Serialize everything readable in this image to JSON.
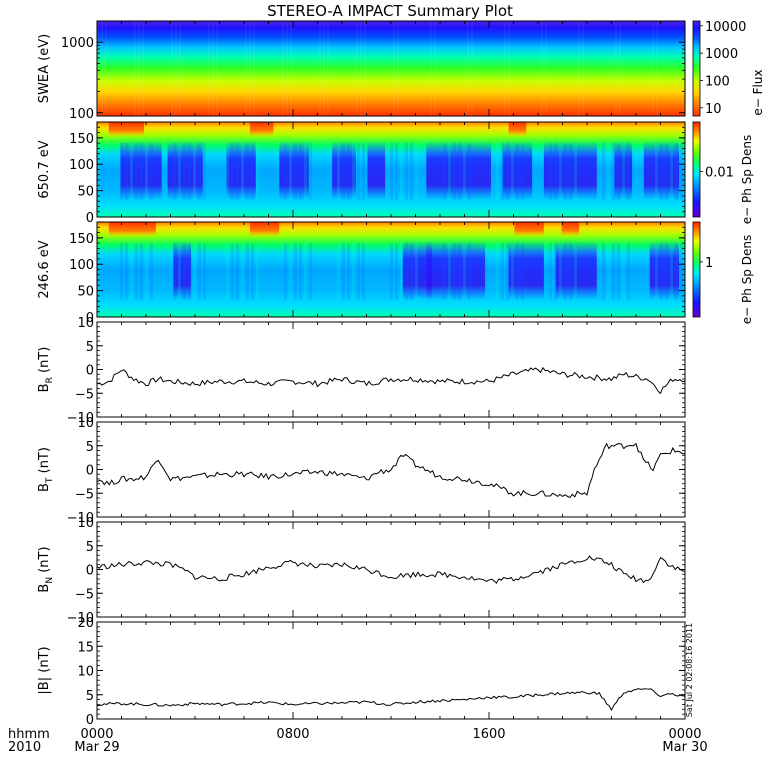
{
  "title": "STEREO-A IMPACT Summary Plot",
  "stamp": "Sat Jul  2 02:08:16 2011",
  "time_axis": {
    "row1_label": "hhmm",
    "row2_label": "2010",
    "ticks": [
      {
        "time": "0000",
        "date": "Mar 29",
        "frac": 0
      },
      {
        "time": "0800",
        "date": "",
        "frac": 0.3333
      },
      {
        "time": "1600",
        "date": "",
        "frac": 0.6667
      },
      {
        "time": "0000",
        "date": "Mar 30",
        "frac": 1
      }
    ]
  },
  "colors": {
    "line": "#000000",
    "axis": "#000000"
  },
  "chart_data": [
    {
      "type": "heatmap",
      "ylabel": "SWEA (eV)",
      "yscale": "log",
      "ylim": [
        90,
        2000
      ],
      "yticks": [
        {
          "label": "100",
          "value": 100
        },
        {
          "label": "1000",
          "value": 1000
        }
      ],
      "colorbar": {
        "label": "e− Flux",
        "scale": "log",
        "range": [
          5,
          15000
        ],
        "ticks": [
          {
            "label": "10000",
            "value": 10000
          },
          {
            "label": "1000",
            "value": 1000
          },
          {
            "label": "100",
            "value": 100
          },
          {
            "label": "10",
            "value": 10
          }
        ]
      },
      "description": "energy-time spectrogram, flux decreasing with energy (red at low energy, purple at high energy)"
    },
    {
      "type": "heatmap",
      "ylabel": "650.7 eV",
      "ylim": [
        0,
        180
      ],
      "yticks": [
        {
          "label": "0",
          "value": 0
        },
        {
          "label": "50",
          "value": 50
        },
        {
          "label": "100",
          "value": 100
        },
        {
          "label": "150",
          "value": 150
        }
      ],
      "colorbar": {
        "label": "e− Ph Sp Dens",
        "scale": "log",
        "ticks": [
          {
            "label": "0.01",
            "value": 0.01
          }
        ]
      },
      "description": "pitch angle distribution"
    },
    {
      "type": "heatmap",
      "ylabel": "246.6 eV",
      "ylim": [
        0,
        180
      ],
      "yticks": [
        {
          "label": "0",
          "value": 0
        },
        {
          "label": "50",
          "value": 50
        },
        {
          "label": "100",
          "value": 100
        },
        {
          "label": "150",
          "value": 150
        }
      ],
      "colorbar": {
        "label": "e− Ph Sp Dens",
        "scale": "log",
        "ticks": [
          {
            "label": "1",
            "value": 1
          }
        ]
      },
      "description": "pitch angle distribution"
    },
    {
      "type": "line",
      "ylabel": "B",
      "ylabel_sub": "R",
      "ylabel_unit": "(nT)",
      "ylim": [
        -10,
        10
      ],
      "yticks": [
        {
          "label": "−10",
          "value": -10
        },
        {
          "label": "−5",
          "value": -5
        },
        {
          "label": "0",
          "value": 0
        },
        {
          "label": "5",
          "value": 5
        },
        {
          "label": "10",
          "value": 10
        }
      ],
      "x_hours": [
        0,
        0.5,
        1,
        1.5,
        2,
        2.5,
        3,
        4,
        5,
        6,
        7,
        8,
        9,
        10,
        11,
        12,
        13,
        14,
        15,
        16,
        17,
        18,
        19,
        20,
        21,
        21.5,
        22,
        22.5,
        23,
        23.5,
        24
      ],
      "y": [
        -3,
        -2.5,
        0,
        -2,
        -3,
        -2,
        -2.5,
        -3,
        -2.5,
        -2.5,
        -3,
        -2.5,
        -3,
        -2,
        -3,
        -2,
        -2,
        -2.5,
        -2.5,
        -2.5,
        -1,
        0,
        -1,
        -1.5,
        -2,
        -1,
        -1.5,
        -2,
        -4.5,
        -2,
        -2
      ]
    },
    {
      "type": "line",
      "ylabel": "B",
      "ylabel_sub": "T",
      "ylabel_unit": "(nT)",
      "ylim": [
        -10,
        10
      ],
      "yticks": [
        {
          "label": "−10",
          "value": -10
        },
        {
          "label": "−5",
          "value": -5
        },
        {
          "label": "0",
          "value": 0
        },
        {
          "label": "5",
          "value": 5
        },
        {
          "label": "10",
          "value": 10
        }
      ],
      "x_hours": [
        0,
        0.5,
        1,
        1.5,
        2,
        2.5,
        3,
        4,
        5,
        6,
        7,
        8,
        9,
        10,
        11,
        11.5,
        12,
        12.5,
        13,
        14,
        15,
        16,
        17,
        18,
        19,
        20,
        20.3,
        20.8,
        21.5,
        22,
        22.3,
        22.7,
        23,
        23.5,
        24
      ],
      "y": [
        -2,
        -3,
        -2,
        -2,
        -1.5,
        2.5,
        -2,
        -1.5,
        -1,
        -1,
        -1.5,
        -1,
        -0.5,
        -1,
        -2,
        -0.5,
        0,
        3,
        1,
        -1.5,
        -2,
        -3,
        -5,
        -5,
        -5.5,
        -5,
        0,
        5,
        5,
        5.5,
        2,
        0,
        3,
        4,
        3.5
      ]
    },
    {
      "type": "line",
      "ylabel": "B",
      "ylabel_sub": "N",
      "ylabel_unit": "(nT)",
      "ylim": [
        -10,
        10
      ],
      "yticks": [
        {
          "label": "−10",
          "value": -10
        },
        {
          "label": "−5",
          "value": -5
        },
        {
          "label": "0",
          "value": 0
        },
        {
          "label": "5",
          "value": 5
        },
        {
          "label": "10",
          "value": 10
        }
      ],
      "x_hours": [
        0,
        1,
        2,
        3,
        3.5,
        4,
        5,
        6,
        7,
        8,
        9,
        10,
        11,
        12,
        13,
        14,
        15,
        16,
        17,
        18,
        19,
        20,
        20.5,
        21,
        21.5,
        22,
        22.5,
        23,
        23.5,
        24
      ],
      "y": [
        0.5,
        1,
        1.5,
        1,
        0,
        -1.5,
        -2,
        -1,
        0.5,
        1.5,
        0.5,
        1,
        0,
        -1.5,
        -1,
        -1,
        -1.5,
        -2.5,
        -2,
        -0.5,
        1,
        2.5,
        2,
        1,
        -1,
        -2,
        -2.5,
        2.5,
        0.5,
        -0.5
      ]
    },
    {
      "type": "line",
      "ylabel": "|B|",
      "ylabel_unit": "(nT)",
      "ylim": [
        0,
        20
      ],
      "yticks": [
        {
          "label": "0",
          "value": 0
        },
        {
          "label": "5",
          "value": 5
        },
        {
          "label": "10",
          "value": 10
        },
        {
          "label": "15",
          "value": 15
        },
        {
          "label": "20",
          "value": 20
        }
      ],
      "x_hours": [
        0,
        1,
        2,
        3,
        4,
        5,
        6,
        7,
        8,
        9,
        10,
        11,
        12,
        13,
        14,
        15,
        16,
        17,
        18,
        19,
        20,
        20.5,
        21,
        21.5,
        22,
        22.5,
        23,
        23.5,
        24
      ],
      "y": [
        3,
        3.2,
        3,
        2.8,
        3.2,
        3,
        3.2,
        3.4,
        3,
        3.2,
        3.3,
        3.5,
        3,
        3.5,
        3.8,
        4,
        4.5,
        4.5,
        5,
        5.3,
        5.5,
        5.2,
        2,
        5.5,
        6,
        6.2,
        4.8,
        5.2,
        4.5
      ]
    }
  ]
}
